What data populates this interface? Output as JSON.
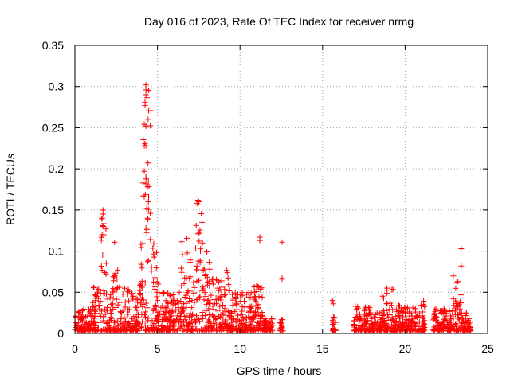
{
  "chart_data": {
    "type": "scatter",
    "title": "Day 016 of 2023, Rate Of TEC Index for receiver nrmg",
    "xlabel": "GPS time / hours",
    "ylabel": "ROTI / TECUs",
    "xlim": [
      0,
      25
    ],
    "ylim": [
      0,
      0.35
    ],
    "xticks": [
      0,
      5,
      10,
      15,
      20,
      25
    ],
    "xtick_labels": [
      "0",
      "5",
      "10",
      "15",
      "20",
      "25"
    ],
    "yticks": [
      0,
      0.05,
      0.1,
      0.15,
      0.2,
      0.25,
      0.3,
      0.35
    ],
    "ytick_labels": [
      "0",
      "0.05",
      "0.1",
      "0.15",
      "0.2",
      "0.25",
      "0.3",
      "0.35"
    ],
    "grid": true,
    "marker": "+",
    "color": "#ff0000",
    "bands": [
      {
        "x": [
          0.0,
          1.0
        ],
        "ymax": 0.03
      },
      {
        "x": [
          1.0,
          1.6
        ],
        "ymax": 0.06
      },
      {
        "x": [
          1.6,
          1.9
        ],
        "ymax": 0.15
      },
      {
        "x": [
          1.9,
          2.3
        ],
        "ymax": 0.05
      },
      {
        "x": [
          2.3,
          2.7
        ],
        "ymax": 0.115
      },
      {
        "x": [
          2.7,
          3.8
        ],
        "ymax": 0.055
      },
      {
        "x": [
          3.8,
          4.1
        ],
        "ymax": 0.11
      },
      {
        "x": [
          4.1,
          4.6
        ],
        "ymax": 0.3
      },
      {
        "x": [
          4.6,
          5.2
        ],
        "ymax": 0.11
      },
      {
        "x": [
          5.2,
          6.4
        ],
        "ymax": 0.05
      },
      {
        "x": [
          6.4,
          6.9
        ],
        "ymax": 0.12
      },
      {
        "x": [
          6.9,
          7.3
        ],
        "ymax": 0.09
      },
      {
        "x": [
          7.3,
          7.8
        ],
        "ymax": 0.16
      },
      {
        "x": [
          7.8,
          8.3
        ],
        "ymax": 0.1
      },
      {
        "x": [
          8.3,
          9.0
        ],
        "ymax": 0.07
      },
      {
        "x": [
          9.0,
          9.4
        ],
        "ymax": 0.085
      },
      {
        "x": [
          9.4,
          10.8
        ],
        "ymax": 0.05
      },
      {
        "x": [
          10.8,
          11.4
        ],
        "ymax": 0.06
      },
      {
        "x": [
          11.4,
          12.0
        ],
        "ymax": 0.02
      },
      {
        "x": [
          12.4,
          12.6
        ],
        "ymax": 0.02
      },
      {
        "x": [
          15.6,
          15.8
        ],
        "ymax": 0.02
      },
      {
        "x": [
          16.9,
          18.0
        ],
        "ymax": 0.035
      },
      {
        "x": [
          18.0,
          18.6
        ],
        "ymax": 0.025
      },
      {
        "x": [
          18.6,
          19.3
        ],
        "ymax": 0.055
      },
      {
        "x": [
          19.3,
          20.6
        ],
        "ymax": 0.035
      },
      {
        "x": [
          20.6,
          21.2
        ],
        "ymax": 0.04
      },
      {
        "x": [
          21.7,
          22.9
        ],
        "ymax": 0.03
      },
      {
        "x": [
          22.9,
          23.4
        ],
        "ymax": 0.07
      },
      {
        "x": [
          23.4,
          24.0
        ],
        "ymax": 0.025
      }
    ],
    "outliers": [
      {
        "x": 4.3,
        "y": 0.302
      },
      {
        "x": 4.3,
        "y": 0.296
      },
      {
        "x": 4.3,
        "y": 0.29
      },
      {
        "x": 4.25,
        "y": 0.281
      },
      {
        "x": 4.25,
        "y": 0.277
      },
      {
        "x": 4.2,
        "y": 0.254
      },
      {
        "x": 4.3,
        "y": 0.252
      },
      {
        "x": 4.2,
        "y": 0.228
      },
      {
        "x": 4.3,
        "y": 0.228
      },
      {
        "x": 4.2,
        "y": 0.197
      },
      {
        "x": 4.3,
        "y": 0.19
      },
      {
        "x": 4.45,
        "y": 0.185
      },
      {
        "x": 4.4,
        "y": 0.178
      },
      {
        "x": 4.2,
        "y": 0.166
      },
      {
        "x": 4.45,
        "y": 0.16
      },
      {
        "x": 4.35,
        "y": 0.152
      },
      {
        "x": 4.4,
        "y": 0.14
      },
      {
        "x": 4.3,
        "y": 0.128
      },
      {
        "x": 1.7,
        "y": 0.15
      },
      {
        "x": 1.7,
        "y": 0.145
      },
      {
        "x": 1.65,
        "y": 0.14
      },
      {
        "x": 1.7,
        "y": 0.13
      },
      {
        "x": 1.65,
        "y": 0.12
      },
      {
        "x": 7.45,
        "y": 0.162
      },
      {
        "x": 7.5,
        "y": 0.16
      },
      {
        "x": 7.4,
        "y": 0.158
      },
      {
        "x": 11.2,
        "y": 0.117
      },
      {
        "x": 11.2,
        "y": 0.113
      },
      {
        "x": 12.55,
        "y": 0.111
      },
      {
        "x": 12.55,
        "y": 0.066
      },
      {
        "x": 12.55,
        "y": 0.067
      },
      {
        "x": 23.4,
        "y": 0.103
      },
      {
        "x": 23.4,
        "y": 0.082
      },
      {
        "x": 11.0,
        "y": 0.058
      },
      {
        "x": 11.1,
        "y": 0.035
      },
      {
        "x": 12.5,
        "y": 0.012
      },
      {
        "x": 12.55,
        "y": 0.008
      },
      {
        "x": 15.6,
        "y": 0.04
      },
      {
        "x": 15.65,
        "y": 0.036
      },
      {
        "x": 18.9,
        "y": 0.055
      },
      {
        "x": 19.2,
        "y": 0.053
      }
    ]
  }
}
